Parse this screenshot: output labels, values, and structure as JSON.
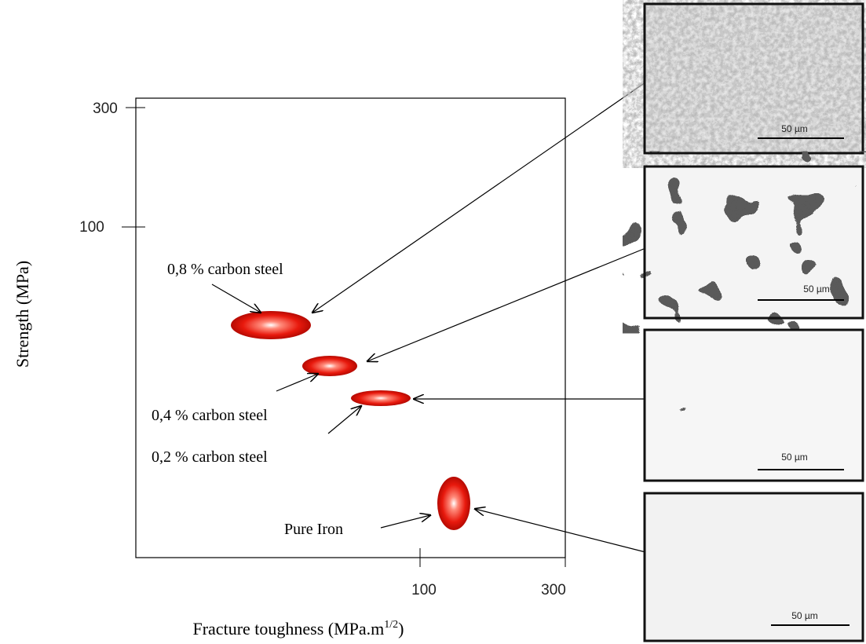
{
  "axes": {
    "y_label": "Strength (MPa)",
    "x_label": {
      "text": "Fracture toughness (MPa.m",
      "superscript": "1/2",
      "closing": ")"
    },
    "y_ticks": [
      "300",
      "100"
    ],
    "x_ticks": [
      "100",
      "300"
    ]
  },
  "regions": [
    {
      "label": "0,8 % carbon steel"
    },
    {
      "label": "0,4 % carbon steel"
    },
    {
      "label": "0,2 % carbon steel"
    },
    {
      "label": "Pure Iron"
    }
  ],
  "micrographs": [
    {
      "scale_label": "50 µm"
    },
    {
      "scale_label": "50 µm"
    },
    {
      "scale_label": "50 µm"
    },
    {
      "scale_label": "50 µm"
    }
  ]
}
